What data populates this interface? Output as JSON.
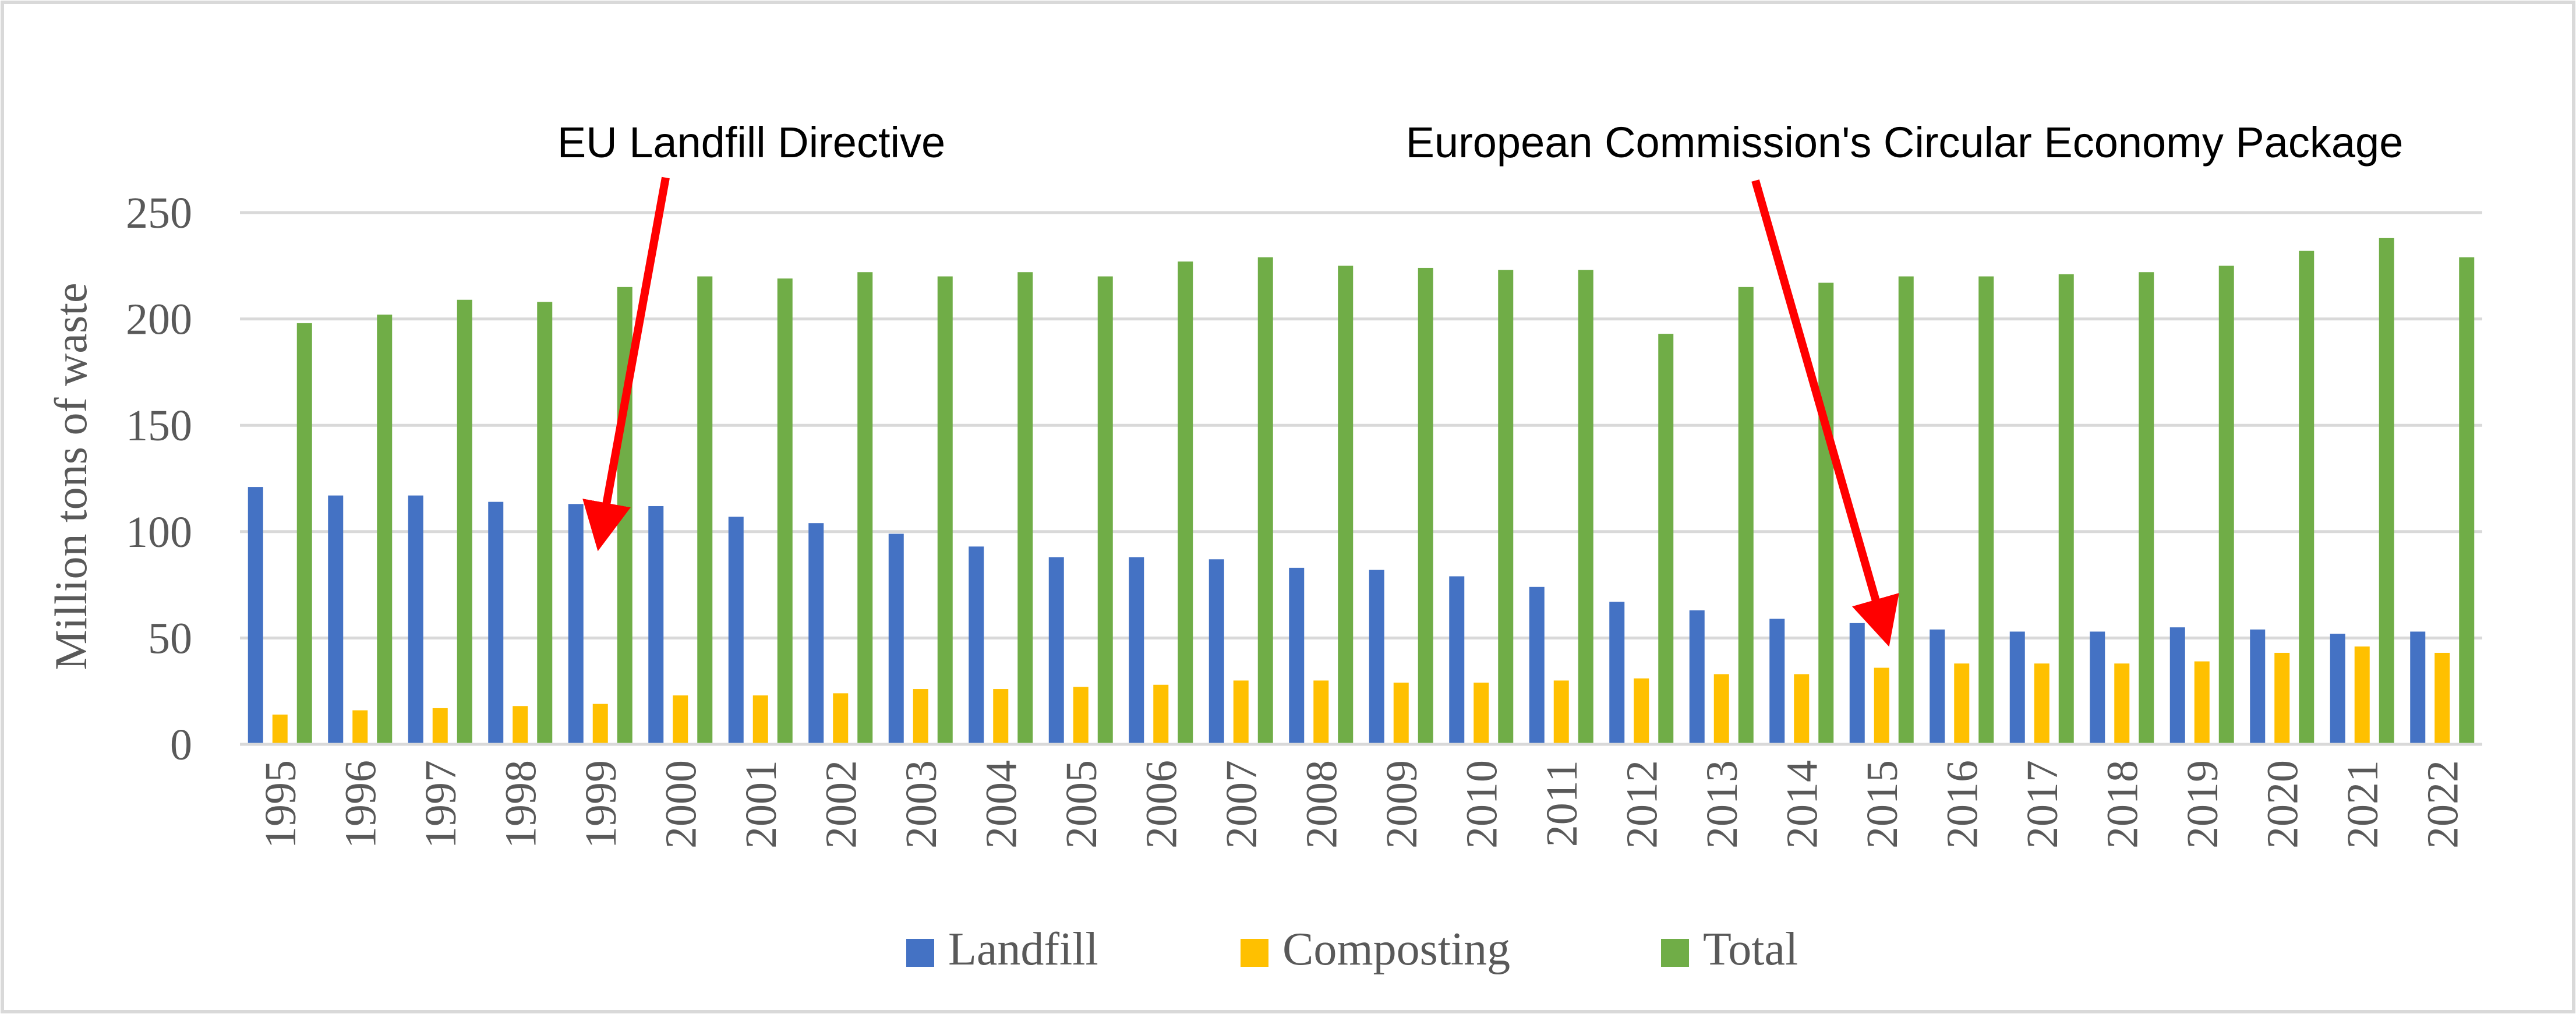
{
  "chart_data": {
    "type": "bar",
    "title": "",
    "xlabel": "",
    "ylabel": "Million tons of waste",
    "ylim": [
      0,
      250
    ],
    "yticks": [
      0,
      50,
      100,
      150,
      200,
      250
    ],
    "grid": true,
    "legend_position": "bottom",
    "categories": [
      "1995",
      "1996",
      "1997",
      "1998",
      "1999",
      "2000",
      "2001",
      "2002",
      "2003",
      "2004",
      "2005",
      "2006",
      "2007",
      "2008",
      "2009",
      "2010",
      "2011",
      "2012",
      "2013",
      "2014",
      "2015",
      "2016",
      "2017",
      "2018",
      "2019",
      "2020",
      "2021",
      "2022"
    ],
    "series": [
      {
        "name": "Landfill",
        "color": "#4472C4",
        "values": [
          121,
          117,
          117,
          114,
          113,
          112,
          107,
          104,
          99,
          93,
          88,
          88,
          87,
          83,
          82,
          79,
          74,
          67,
          63,
          59,
          57,
          54,
          53,
          53,
          55,
          54,
          52,
          53
        ]
      },
      {
        "name": "Composting",
        "color": "#FFC000",
        "values": [
          14,
          16,
          17,
          18,
          19,
          23,
          23,
          24,
          26,
          26,
          27,
          28,
          30,
          30,
          29,
          29,
          30,
          31,
          33,
          33,
          36,
          38,
          38,
          38,
          39,
          43,
          46,
          43
        ]
      },
      {
        "name": "Total",
        "color": "#70AD47",
        "values": [
          198,
          202,
          209,
          208,
          215,
          220,
          219,
          222,
          220,
          222,
          220,
          227,
          229,
          225,
          224,
          223,
          223,
          193,
          215,
          217,
          220,
          220,
          221,
          222,
          225,
          232,
          238,
          229
        ]
      }
    ],
    "annotations": [
      {
        "text": "EU Landfill Directive",
        "points_to_year": "1999",
        "arrow_color": "#FF0000"
      },
      {
        "text": "European Commission's Circular Economy Package",
        "points_to_year": "2015",
        "arrow_color": "#FF0000"
      }
    ]
  }
}
